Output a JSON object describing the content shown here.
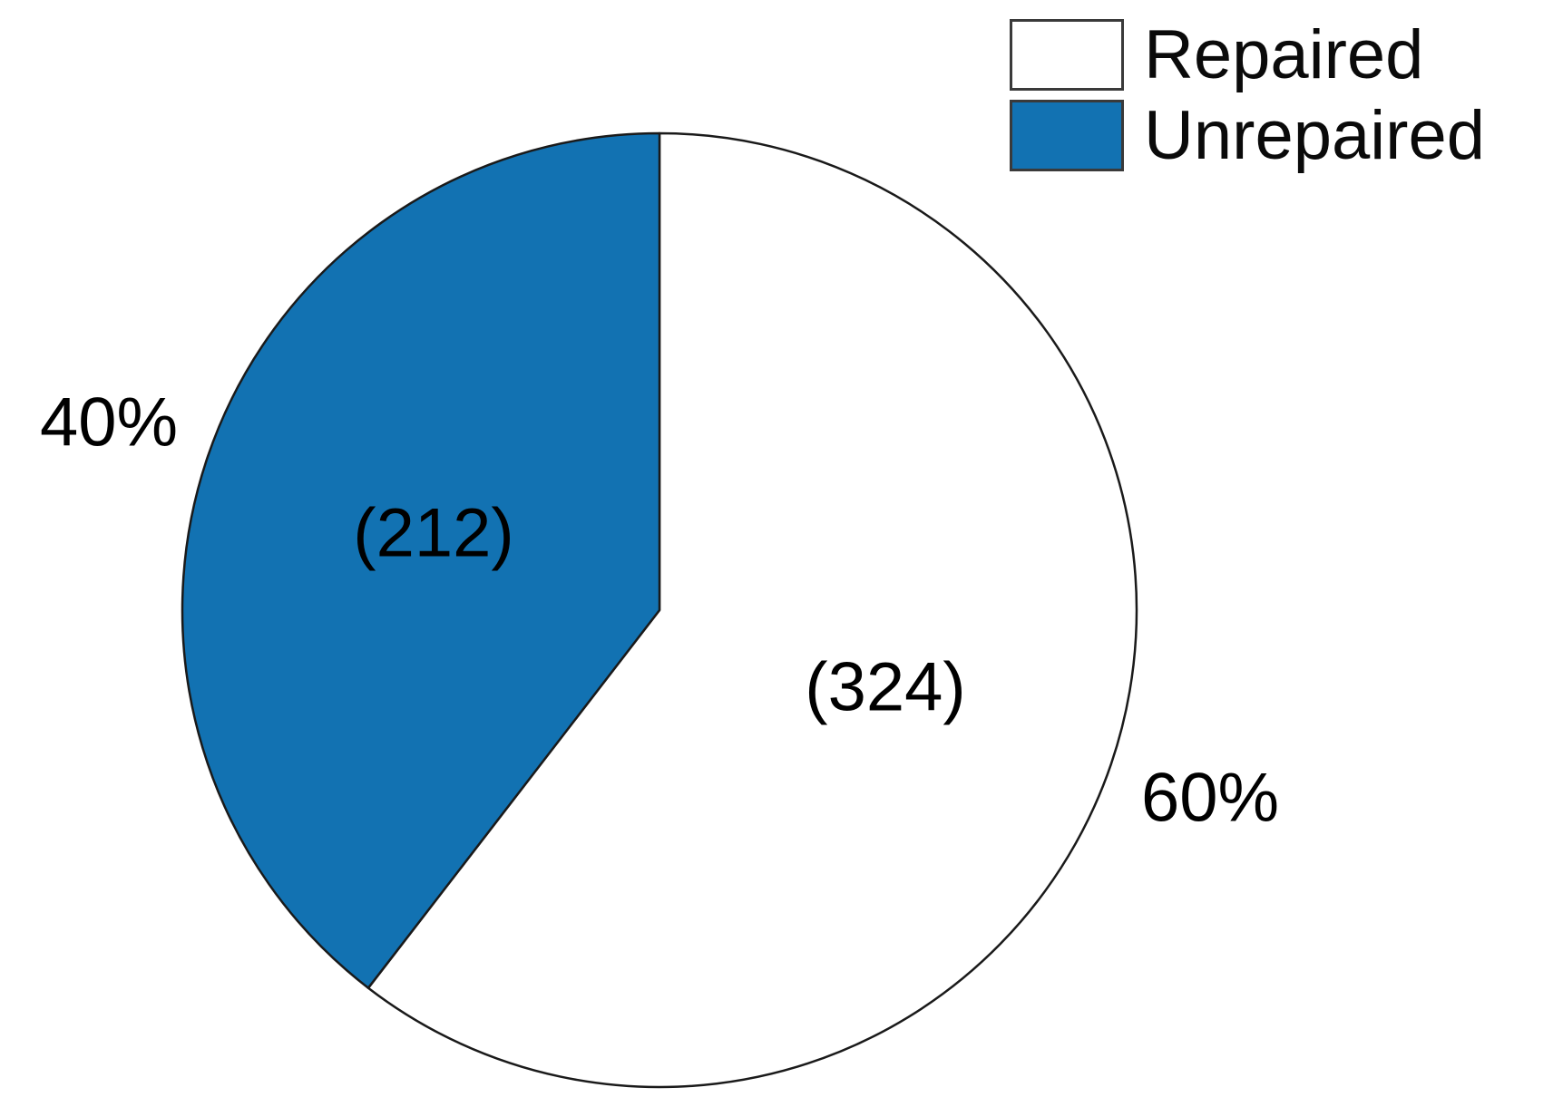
{
  "chart_data": {
    "type": "pie",
    "start_angle": "12-oclock",
    "direction": "clockwise",
    "legend_position": "top-right",
    "outline_color": "#1a1a1a",
    "text_color": "#000000",
    "series": [
      {
        "name": "Repaired",
        "value": 324,
        "percent": 60,
        "percent_label": "60%",
        "count_label": "(324)",
        "color": "#ffffff"
      },
      {
        "name": "Unrepaired",
        "value": 212,
        "percent": 40,
        "percent_label": "40%",
        "count_label": "(212)",
        "color": "#1272b2"
      }
    ]
  },
  "legend": {
    "entries": [
      {
        "label": "Repaired",
        "swatch_color": "#ffffff"
      },
      {
        "label": "Unrepaired",
        "swatch_color": "#1272b2"
      }
    ]
  }
}
